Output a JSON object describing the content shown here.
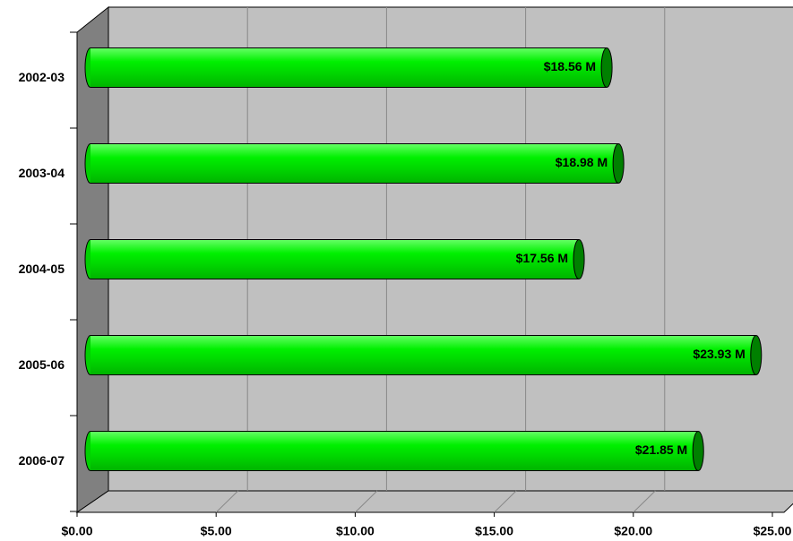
{
  "chart_data": {
    "type": "bar",
    "orientation": "horizontal",
    "categories": [
      "2002-03",
      "2003-04",
      "2004-05",
      "2005-06",
      "2006-07"
    ],
    "values": [
      18.56,
      18.98,
      17.56,
      23.93,
      21.85
    ],
    "value_labels": [
      "$18.56 M",
      "$18.98 M",
      "$17.56 M",
      "$23.93 M",
      "$21.85 M"
    ],
    "color": "#00e600",
    "xlim": [
      0,
      25
    ],
    "xticks": [
      {
        "value": 0,
        "label": "$0.00"
      },
      {
        "value": 5,
        "label": "$5.00"
      },
      {
        "value": 10,
        "label": "$10.00"
      },
      {
        "value": 15,
        "label": "$15.00"
      },
      {
        "value": 20,
        "label": "$20.00"
      },
      {
        "value": 25,
        "label": "$25.00"
      }
    ],
    "grid": true
  }
}
